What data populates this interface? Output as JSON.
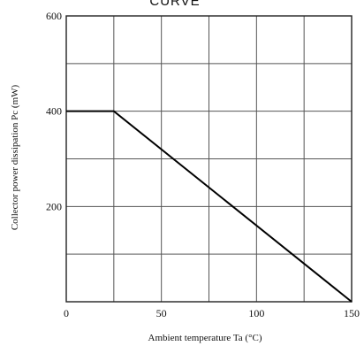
{
  "chart_data": {
    "type": "line",
    "title": "CURVE",
    "xlabel": "Ambient temperature Ta (°C)",
    "ylabel": "Collector power dissipation Pc (mW)",
    "xlim": [
      0,
      150
    ],
    "ylim": [
      0,
      600
    ],
    "x_ticks": [
      0,
      50,
      100,
      150
    ],
    "x_tick_labels": [
      "0",
      "50",
      "100",
      "150"
    ],
    "y_ticks": [
      200,
      400,
      600
    ],
    "y_tick_labels": [
      "200",
      "400",
      "600"
    ],
    "grid": true,
    "grid_x": [
      0,
      25,
      50,
      75,
      100,
      125,
      150
    ],
    "grid_y": [
      0,
      100,
      200,
      300,
      400,
      500,
      600
    ],
    "series": [
      {
        "x": [
          0,
          25,
          150
        ],
        "y": [
          400,
          400,
          0
        ]
      }
    ],
    "colors": {
      "line": "#000000",
      "grid": "#555555",
      "frame": "#222222"
    }
  }
}
